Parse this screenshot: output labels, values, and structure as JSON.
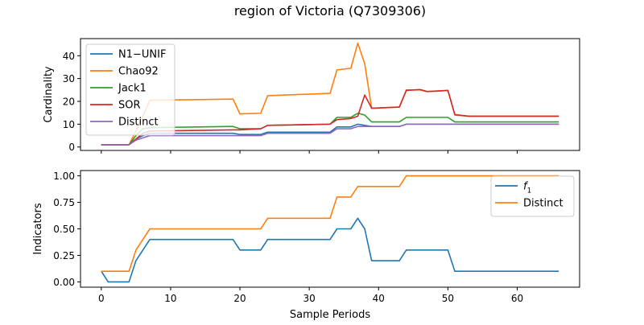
{
  "title": "region of Victoria (Q7309306)",
  "chart_data": [
    {
      "type": "line",
      "ylabel": "Cardinality",
      "xlabel": "",
      "xlim": [
        -3,
        69
      ],
      "ylim": [
        -1.5,
        47.5
      ],
      "yticks": [
        0,
        10,
        20,
        30,
        40
      ],
      "xticks": [
        0,
        10,
        20,
        30,
        40,
        50,
        60
      ],
      "legend": "top-left",
      "series": [
        {
          "name": "N1−UNIF",
          "color": "#1f77b4",
          "points": [
            [
              0,
              1
            ],
            [
              4,
              1
            ],
            [
              5,
              3.5
            ],
            [
              6,
              5
            ],
            [
              7,
              6
            ],
            [
              19,
              6
            ],
            [
              20,
              5.5
            ],
            [
              23,
              5.5
            ],
            [
              24,
              6.5
            ],
            [
              33,
              6.5
            ],
            [
              34,
              8.8
            ],
            [
              36,
              8.8
            ],
            [
              37,
              10
            ],
            [
              38,
              9.5
            ],
            [
              39,
              9
            ],
            [
              43,
              9
            ],
            [
              44,
              10
            ],
            [
              66,
              10
            ]
          ]
        },
        {
          "name": "Chao92",
          "color": "#ff7f0e",
          "points": [
            [
              0,
              1
            ],
            [
              4,
              1
            ],
            [
              5,
              7
            ],
            [
              6,
              13.5
            ],
            [
              7,
              20.5
            ],
            [
              19,
              21
            ],
            [
              20,
              14.5
            ],
            [
              23,
              14.8
            ],
            [
              24,
              22.5
            ],
            [
              33,
              23.5
            ],
            [
              34,
              33.8
            ],
            [
              36,
              34.5
            ],
            [
              37,
              45.5
            ],
            [
              38,
              36.5
            ],
            [
              39,
              17
            ],
            [
              43,
              17.5
            ],
            [
              44,
              25
            ],
            [
              46,
              25
            ],
            [
              47,
              24.3
            ],
            [
              50,
              24.8
            ],
            [
              51,
              14
            ],
            [
              53,
              13.5
            ],
            [
              66,
              13.5
            ]
          ]
        },
        {
          "name": "Jack1",
          "color": "#2ca02c",
          "points": [
            [
              0,
              1
            ],
            [
              4,
              1
            ],
            [
              5,
              5
            ],
            [
              6,
              8
            ],
            [
              7,
              8.5
            ],
            [
              19,
              9
            ],
            [
              20,
              8
            ],
            [
              23,
              8
            ],
            [
              24,
              9.5
            ],
            [
              33,
              10
            ],
            [
              34,
              13
            ],
            [
              36,
              13
            ],
            [
              37,
              14.8
            ],
            [
              38,
              14
            ],
            [
              39,
              11
            ],
            [
              43,
              11
            ],
            [
              44,
              13
            ],
            [
              50,
              13
            ],
            [
              51,
              11
            ],
            [
              66,
              11
            ]
          ]
        },
        {
          "name": "SOR",
          "color": "#d62728",
          "points": [
            [
              0,
              1
            ],
            [
              4,
              1
            ],
            [
              5,
              3.5
            ],
            [
              6,
              6
            ],
            [
              7,
              7
            ],
            [
              19,
              7.5
            ],
            [
              20,
              7.5
            ],
            [
              23,
              8
            ],
            [
              24,
              9.5
            ],
            [
              33,
              10
            ],
            [
              34,
              12
            ],
            [
              36,
              12.5
            ],
            [
              37,
              13.5
            ],
            [
              38,
              22.8
            ],
            [
              39,
              17
            ],
            [
              43,
              17.5
            ],
            [
              44,
              24.8
            ],
            [
              45,
              25
            ],
            [
              46,
              25.2
            ],
            [
              47,
              24.3
            ],
            [
              50,
              24.8
            ],
            [
              51,
              14.2
            ],
            [
              53,
              13.5
            ],
            [
              66,
              13.5
            ]
          ]
        },
        {
          "name": "Distinct",
          "color": "#9467bd",
          "points": [
            [
              0,
              1
            ],
            [
              4,
              1
            ],
            [
              5,
              3
            ],
            [
              6,
              4
            ],
            [
              7,
              5
            ],
            [
              19,
              5
            ],
            [
              20,
              5
            ],
            [
              23,
              5
            ],
            [
              24,
              6
            ],
            [
              33,
              6
            ],
            [
              34,
              8
            ],
            [
              36,
              8
            ],
            [
              37,
              9
            ],
            [
              43,
              9
            ],
            [
              44,
              10
            ],
            [
              66,
              10
            ]
          ]
        }
      ]
    },
    {
      "type": "line",
      "ylabel": "Indicators",
      "xlabel": "Sample Periods",
      "xlim": [
        -3,
        69
      ],
      "ylim": [
        -0.05,
        1.05
      ],
      "yticks": [
        0.0,
        0.25,
        0.5,
        0.75,
        1.0
      ],
      "ytick_labels": [
        "0.00",
        "0.25",
        "0.50",
        "0.75",
        "1.00"
      ],
      "xticks": [
        0,
        10,
        20,
        30,
        40,
        50,
        60
      ],
      "legend": "top-right",
      "series": [
        {
          "name": "f1",
          "color": "#1f77b4",
          "points": [
            [
              0,
              0.1
            ],
            [
              1,
              0
            ],
            [
              4,
              0
            ],
            [
              5,
              0.2
            ],
            [
              6,
              0.3
            ],
            [
              7,
              0.4
            ],
            [
              19,
              0.4
            ],
            [
              20,
              0.3
            ],
            [
              23,
              0.3
            ],
            [
              24,
              0.4
            ],
            [
              33,
              0.4
            ],
            [
              34,
              0.5
            ],
            [
              36,
              0.5
            ],
            [
              37,
              0.6
            ],
            [
              38,
              0.5
            ],
            [
              39,
              0.2
            ],
            [
              43,
              0.2
            ],
            [
              44,
              0.3
            ],
            [
              50,
              0.3
            ],
            [
              51,
              0.1
            ],
            [
              66,
              0.1
            ]
          ]
        },
        {
          "name": "Distinct",
          "color": "#ff7f0e",
          "points": [
            [
              0,
              0.1
            ],
            [
              4,
              0.1
            ],
            [
              5,
              0.3
            ],
            [
              6,
              0.4
            ],
            [
              7,
              0.5
            ],
            [
              23,
              0.5
            ],
            [
              24,
              0.6
            ],
            [
              33,
              0.6
            ],
            [
              34,
              0.8
            ],
            [
              36,
              0.8
            ],
            [
              37,
              0.9
            ],
            [
              43,
              0.9
            ],
            [
              44,
              1.0
            ],
            [
              66,
              1.0
            ]
          ]
        }
      ]
    }
  ]
}
